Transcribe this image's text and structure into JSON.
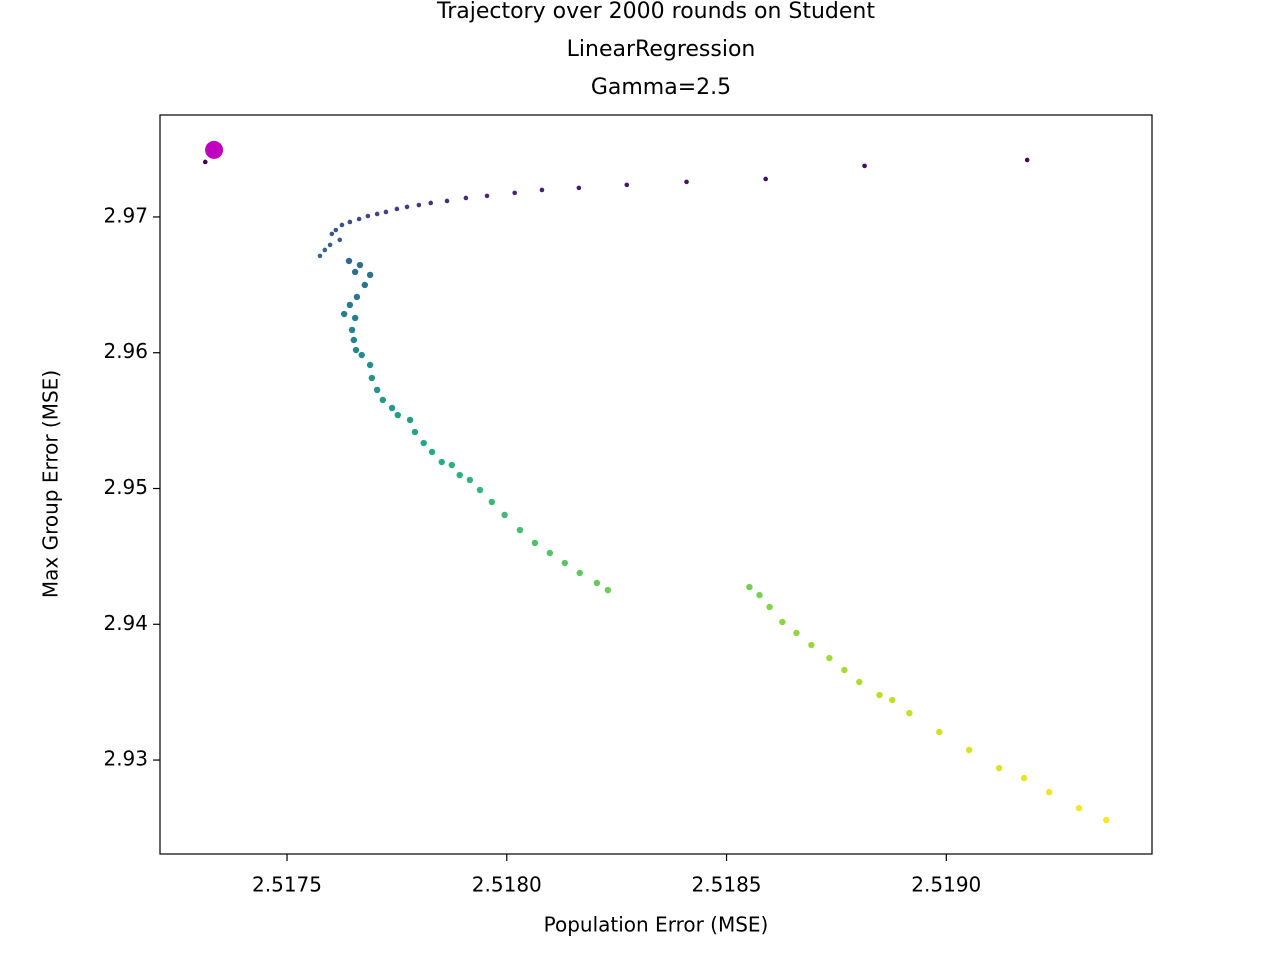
{
  "chart_data": {
    "type": "scatter",
    "title": [
      "Trajectory over 2000 rounds on Student",
      "LinearRegression",
      "Gamma=2.5"
    ],
    "x_label": "Population Error (MSE)",
    "y_label": "Max Group Error (MSE)",
    "xlim": [
      2.517211,
      2.519468
    ],
    "ylim": [
      2.92308,
      2.97751
    ],
    "xticks": [
      2.5175,
      {
        "value": 2.518,
        "label": "2.5180"
      },
      {
        "value": 2.5185,
        "label": "2.5185"
      },
      {
        "value": 2.519,
        "label": "2.5190"
      }
    ],
    "yticks": [
      2.93,
      2.94,
      2.95,
      2.96,
      2.97
    ],
    "series": [
      {
        "colormap": [
          "#440154",
          "#482878",
          "#3e4989",
          "#31688e",
          "#26828e",
          "#1f9e89",
          "#35b779",
          "#6ece58",
          "#b5de2b",
          "#fde725"
        ],
        "x": [
          2.517314,
          2.519184,
          2.518814,
          2.518589,
          2.518409,
          2.518273,
          2.518164,
          2.51808,
          2.518018,
          2.517955,
          2.517907,
          2.517864,
          2.517827,
          2.5178,
          2.517773,
          2.51775,
          2.517725,
          2.517705,
          2.517684,
          2.517664,
          2.517643,
          2.517625,
          2.517611,
          2.517602,
          2.51762,
          2.517598,
          2.517586,
          2.517575,
          2.517641,
          2.517666,
          2.517655,
          2.517689,
          2.517677,
          2.517659,
          2.517643,
          2.51763,
          2.517655,
          2.517648,
          2.517652,
          2.517657,
          2.51767,
          2.517689,
          2.517693,
          2.517705,
          2.517718,
          2.517739,
          2.517752,
          2.51778,
          2.517791,
          2.517811,
          2.51783,
          2.517852,
          2.517875,
          2.517893,
          2.517916,
          2.517939,
          2.517966,
          2.517995,
          2.51803,
          2.518064,
          2.518098,
          2.518132,
          2.518166,
          2.518205,
          2.51823,
          2.518552,
          2.518575,
          2.518598,
          2.518627,
          2.518659,
          2.518693,
          2.518734,
          2.518768,
          2.518802,
          2.518848,
          2.518877,
          2.518916,
          2.518984,
          2.519052,
          2.51912,
          2.519177,
          2.519234,
          2.519302,
          2.519364
        ],
        "values": [
          2.97405,
          2.9742,
          2.97376,
          2.9728,
          2.97258,
          2.97236,
          2.97214,
          2.97199,
          2.97177,
          2.97155,
          2.9714,
          2.97118,
          2.97103,
          2.97088,
          2.97074,
          2.97059,
          2.97037,
          2.97022,
          2.97007,
          2.96985,
          2.96963,
          2.96941,
          2.96904,
          2.96875,
          2.96831,
          2.96794,
          2.96757,
          2.96713,
          2.96676,
          2.96646,
          2.96595,
          2.96573,
          2.96499,
          2.96411,
          2.96352,
          2.96285,
          2.96256,
          2.96168,
          2.96094,
          2.9602,
          2.95983,
          2.9591,
          2.95814,
          2.95726,
          2.95652,
          2.95593,
          2.95541,
          2.95505,
          2.95416,
          2.95335,
          2.95269,
          2.95195,
          2.95173,
          2.95099,
          2.95063,
          2.94989,
          2.94901,
          2.94805,
          2.94694,
          2.94599,
          2.94525,
          2.94451,
          2.94378,
          2.94304,
          2.94252,
          2.94274,
          2.94215,
          2.94127,
          2.94017,
          2.93936,
          2.93847,
          2.93751,
          2.93663,
          2.93575,
          2.93479,
          2.93442,
          2.93346,
          2.93206,
          2.93074,
          2.92941,
          2.92867,
          2.92764,
          2.92646,
          2.92558
        ]
      },
      {
        "color": "#bf00bf",
        "x": [
          2.517334
        ],
        "values": [
          2.97494
        ]
      }
    ]
  }
}
